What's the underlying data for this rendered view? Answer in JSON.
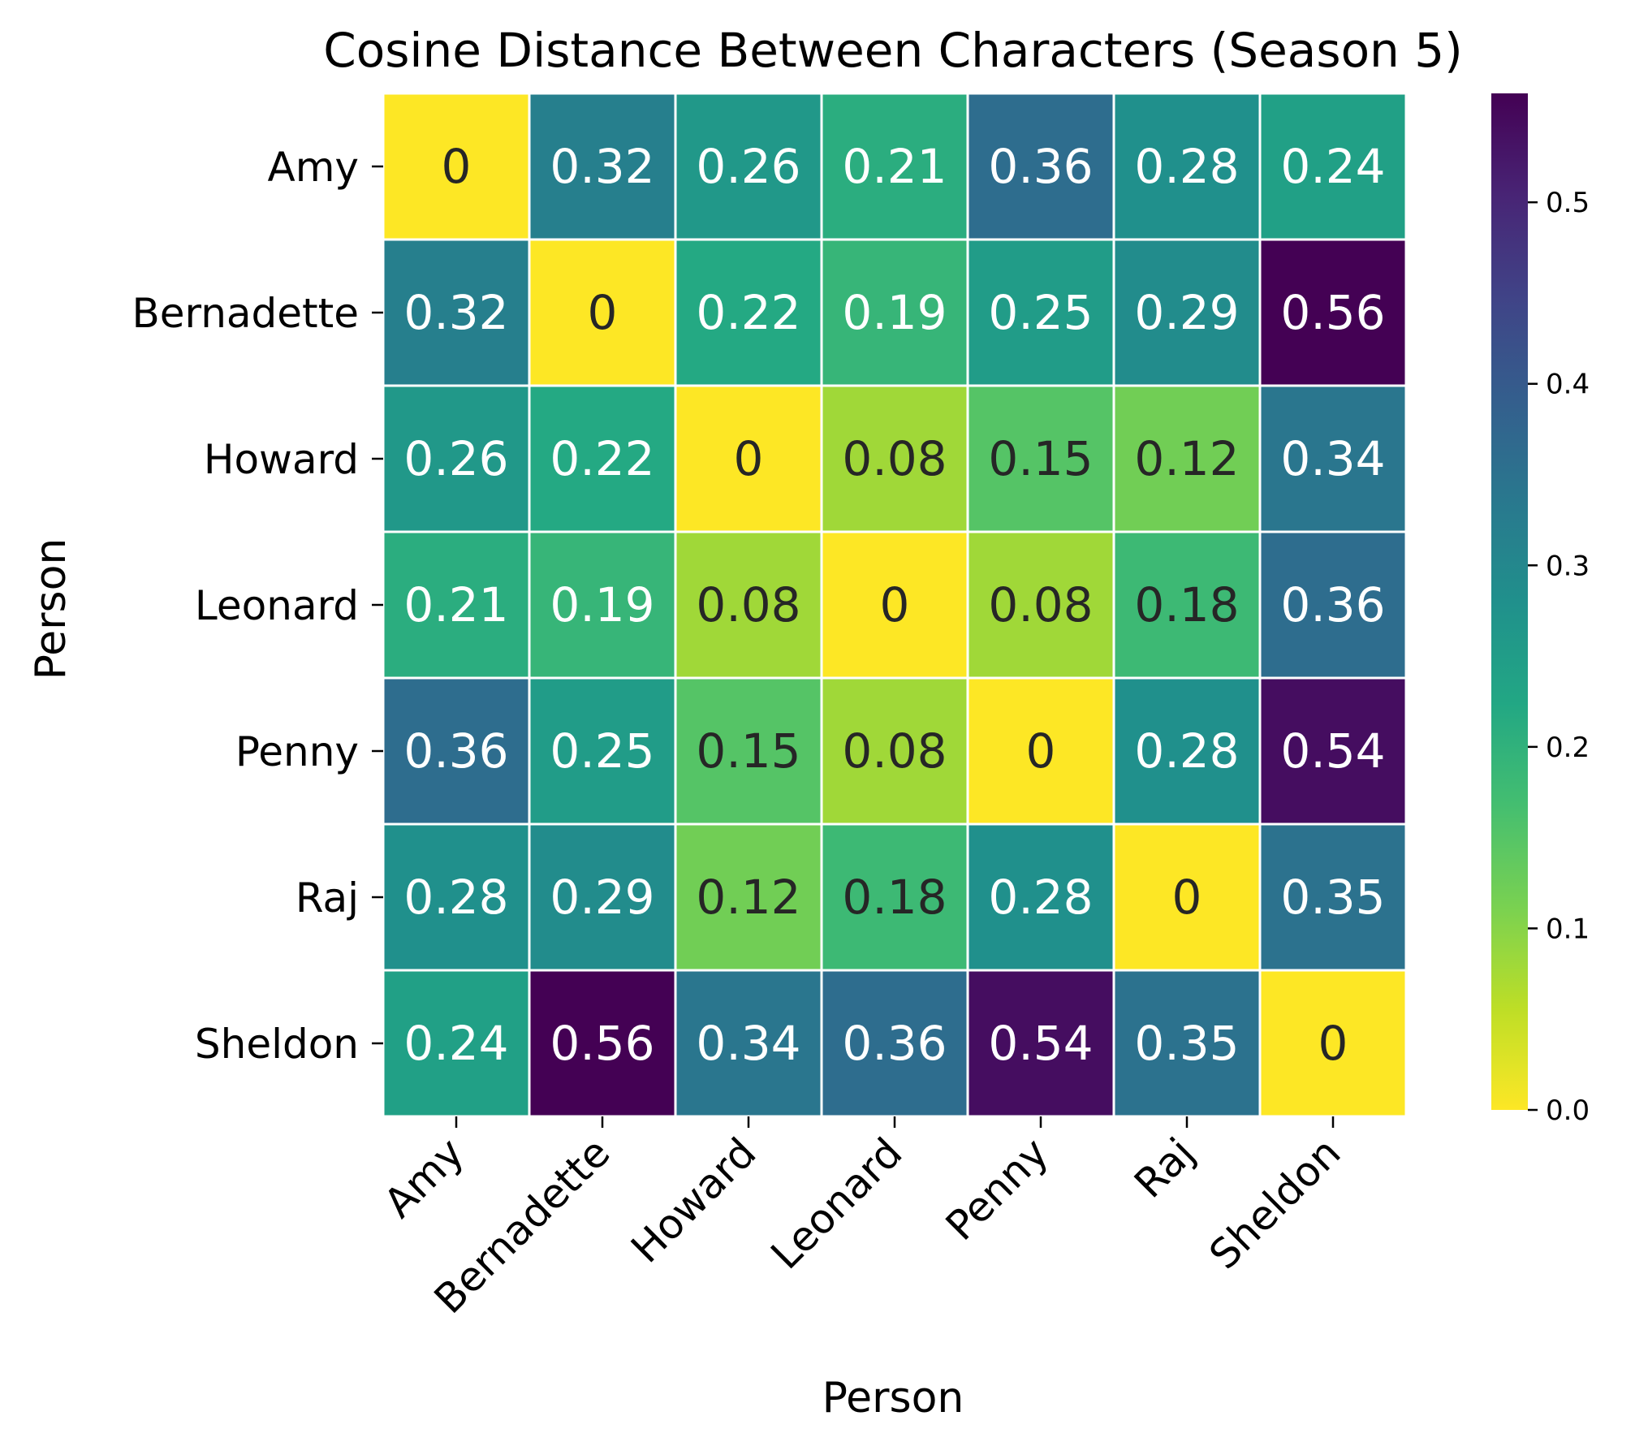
{
  "chart_data": {
    "type": "heatmap",
    "title": "Cosine Distance Between Characters (Season 5)",
    "xlabel": "Person",
    "ylabel": "Person",
    "x_categories": [
      "Amy",
      "Bernadette",
      "Howard",
      "Leonard",
      "Penny",
      "Raj",
      "Sheldon"
    ],
    "y_categories": [
      "Amy",
      "Bernadette",
      "Howard",
      "Leonard",
      "Penny",
      "Raj",
      "Sheldon"
    ],
    "values": [
      [
        0,
        0.32,
        0.26,
        0.21,
        0.36,
        0.28,
        0.24
      ],
      [
        0.32,
        0,
        0.22,
        0.19,
        0.25,
        0.29,
        0.56
      ],
      [
        0.26,
        0.22,
        0,
        0.08,
        0.15,
        0.12,
        0.34
      ],
      [
        0.21,
        0.19,
        0.08,
        0,
        0.08,
        0.18,
        0.36
      ],
      [
        0.36,
        0.25,
        0.15,
        0.08,
        0,
        0.28,
        0.54
      ],
      [
        0.28,
        0.29,
        0.12,
        0.18,
        0.28,
        0,
        0.35
      ],
      [
        0.24,
        0.56,
        0.34,
        0.36,
        0.54,
        0.35,
        0
      ]
    ],
    "value_range": [
      0,
      0.56
    ],
    "colormap": "viridis_r",
    "colorbar": {
      "ticks": [
        0.0,
        0.1,
        0.2,
        0.3,
        0.4,
        0.5
      ],
      "tick_labels": [
        "0.0",
        "0.1",
        "0.2",
        "0.3",
        "0.4",
        "0.5"
      ]
    },
    "cell_border_color": "#ffffff",
    "annot_dark_color": "#262626",
    "annot_light_color": "#ffffff"
  }
}
